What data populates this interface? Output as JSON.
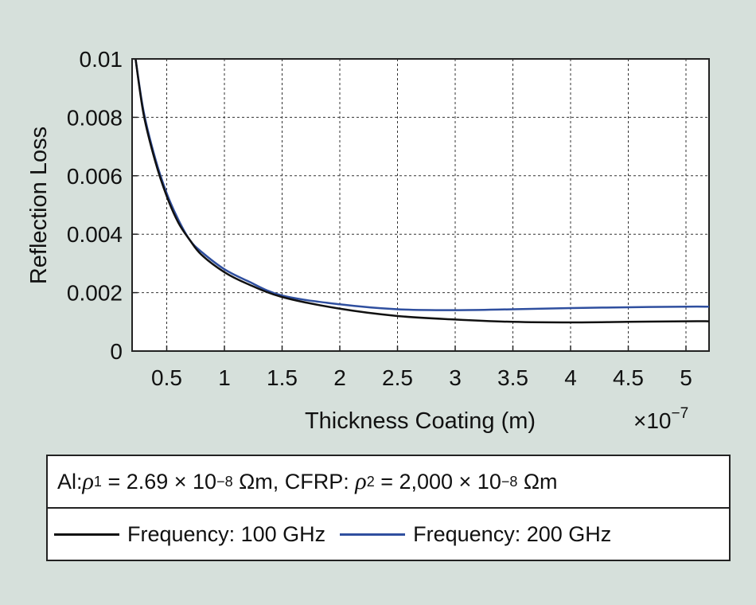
{
  "chart_data": {
    "type": "line",
    "xlabel": "Thickness Coating (m)",
    "x_exponent_label": "×10",
    "x_exponent": "−7",
    "ylabel": "Reflection Loss",
    "xlim": [
      0.2,
      5.2
    ],
    "ylim": [
      0,
      0.01
    ],
    "grid": true,
    "x_ticks": [
      0.5,
      1,
      1.5,
      2,
      2.5,
      3,
      3.5,
      4,
      4.5,
      5
    ],
    "x_tick_labels": [
      "0.5",
      "1",
      "1.5",
      "2",
      "2.5",
      "3",
      "3.5",
      "4",
      "4.5",
      "5"
    ],
    "y_ticks": [
      0,
      0.002,
      0.004,
      0.006,
      0.008,
      0.01
    ],
    "y_tick_labels": [
      "0",
      "0.002",
      "0.004",
      "0.006",
      "0.008",
      "0.01"
    ],
    "series": [
      {
        "name": "Frequency: 100 GHz",
        "color": "#111111",
        "x": [
          0.23,
          0.3,
          0.4,
          0.5,
          0.6,
          0.7,
          0.8,
          1.0,
          1.2,
          1.5,
          2.0,
          2.5,
          3.0,
          3.5,
          4.0,
          4.5,
          5.0,
          5.2
        ],
        "y": [
          0.01,
          0.0081,
          0.0065,
          0.0053,
          0.0044,
          0.0038,
          0.0033,
          0.0027,
          0.0023,
          0.00185,
          0.00145,
          0.0012,
          0.00108,
          0.001,
          0.00098,
          0.001,
          0.00102,
          0.00102
        ]
      },
      {
        "name": "Frequency: 200 GHz",
        "color": "#2f4f9f",
        "x": [
          0.23,
          0.3,
          0.4,
          0.5,
          0.6,
          0.7,
          0.8,
          1.0,
          1.2,
          1.5,
          2.0,
          2.5,
          3.0,
          3.5,
          4.0,
          4.5,
          5.0,
          5.2
        ],
        "y": [
          0.01,
          0.0082,
          0.0066,
          0.0054,
          0.0045,
          0.0038,
          0.0034,
          0.0028,
          0.0024,
          0.0019,
          0.0016,
          0.00143,
          0.0014,
          0.00143,
          0.00147,
          0.0015,
          0.00152,
          0.00152
        ]
      }
    ]
  },
  "legend": {
    "title_parts": {
      "al": "Al: ",
      "rho1": "ρ",
      "sub1": "1",
      "val1": " = 2.69 × 10",
      "exp1": "−8",
      "unit1": " Ωm, CFRP: ",
      "rho2": "ρ",
      "sub2": "2",
      "val2": " = 2,000 × 10",
      "exp2": "−8",
      "unit2": " Ωm"
    },
    "items": [
      "Frequency: 100 GHz",
      "Frequency: 200 GHz"
    ],
    "colors": [
      "#111111",
      "#2f4f9f"
    ]
  }
}
